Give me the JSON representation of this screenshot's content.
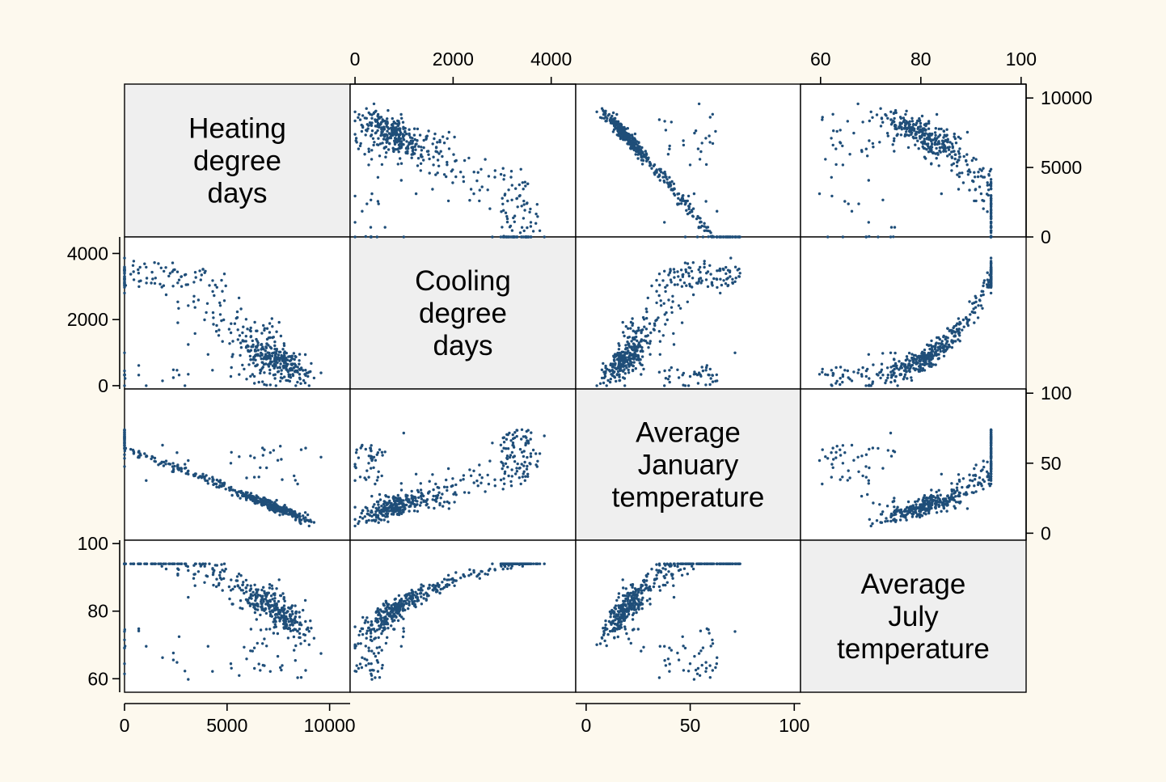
{
  "chart_data": {
    "type": "scatter",
    "layout": "scatterplot-matrix",
    "variables": [
      {
        "label_lines": [
          "Heating",
          "degree",
          "days"
        ],
        "range": [
          0,
          11000
        ],
        "ticks": [
          {
            "value": 0,
            "label": "0"
          },
          {
            "value": 5000,
            "label": "5000"
          },
          {
            "value": 10000,
            "label": "10000"
          }
        ]
      },
      {
        "label_lines": [
          "Cooling",
          "degree",
          "days"
        ],
        "range": [
          -100,
          4500
        ],
        "ticks": [
          {
            "value": 0,
            "label": "0"
          },
          {
            "value": 2000,
            "label": "2000"
          },
          {
            "value": 4000,
            "label": "4000"
          }
        ]
      },
      {
        "label_lines": [
          "Average",
          "January",
          "temperature"
        ],
        "range": [
          -5,
          103
        ],
        "ticks": [
          {
            "value": 0,
            "label": "0"
          },
          {
            "value": 50,
            "label": "50"
          },
          {
            "value": 100,
            "label": "100"
          }
        ]
      },
      {
        "label_lines": [
          "Average",
          "July",
          "temperature"
        ],
        "range": [
          56,
          101
        ],
        "ticks": [
          {
            "value": 60,
            "label": "60"
          },
          {
            "value": 80,
            "label": "80"
          },
          {
            "value": 100,
            "label": "100"
          }
        ]
      }
    ],
    "axis_placement": {
      "top_x": [
        1,
        3
      ],
      "bottom_x": [
        0,
        2
      ],
      "left_y": [
        1,
        3
      ],
      "right_y": [
        0,
        2
      ]
    },
    "colors": {
      "background": "#fdf9ee",
      "plot_background": "#ffffff",
      "diagonal_fill": "#efefef",
      "marker": "#1f4e79",
      "axis": "#000000"
    },
    "marker_style": "small filled circle",
    "n_observations": 480,
    "relationships": {
      "heating_vs_january_temp": "strong negative, nearly linear",
      "cooling_vs_heating": "negative, convex",
      "cooling_vs_july_temp": "positive, convex",
      "january_vs_july_temp": "positive, loose"
    }
  }
}
